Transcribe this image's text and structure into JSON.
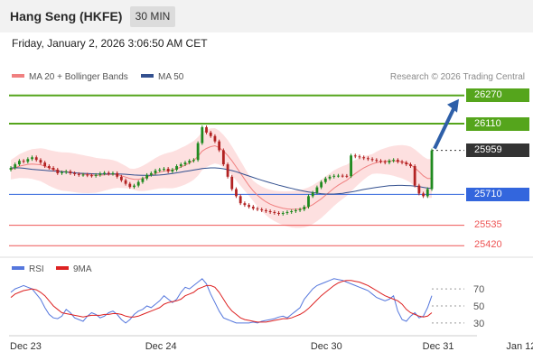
{
  "header": {
    "title": "Hang Seng (HKFE)",
    "timeframe": "30 MIN",
    "datetime": "Friday, January 2, 2026 3:06:50 AM CET"
  },
  "legend": {
    "ma20_label": "MA 20 + Bollinger Bands",
    "ma50_label": "MA 50",
    "credit": "Research © 2026 Trading Central",
    "rsi_label": "RSI",
    "rsi_ma_label": "9MA"
  },
  "colors": {
    "ma20": "#f08080",
    "ma50": "#33508f",
    "bollinger_fill": "#fde0e0",
    "up_candle": "#1f8a1f",
    "down_candle": "#b22222",
    "resistance": "#55a51c",
    "current_price": "#333333",
    "pivot": "#3366dd",
    "support": "#ee5555",
    "rsi": "#5577dd",
    "rsi_ma": "#dd2222",
    "arrow": "#2e5fa8"
  },
  "levels": [
    {
      "value": 26270,
      "label": "26270",
      "kind": "resistance"
    },
    {
      "value": 26110,
      "label": "26110",
      "kind": "resistance"
    },
    {
      "value": 25959,
      "label": "25959",
      "kind": "current"
    },
    {
      "value": 25710,
      "label": "25710",
      "kind": "pivot"
    },
    {
      "value": 25535,
      "label": "25535",
      "kind": "support"
    },
    {
      "value": 25420,
      "label": "25420",
      "kind": "support"
    }
  ],
  "chart_data": [
    {
      "type": "candlestick",
      "series": [
        {
          "name": "Hang Seng (HKFE)",
          "values": [
            25860,
            25880,
            25900,
            25895,
            25910,
            25920,
            25905,
            25890,
            25870,
            25860,
            25850,
            25830,
            25835,
            25840,
            25830,
            25825,
            25820,
            25822,
            25818,
            25815,
            25820,
            25828,
            25832,
            25826,
            25830,
            25810,
            25790,
            25770,
            25752,
            25760,
            25780,
            25800,
            25820,
            25830,
            25845,
            25850,
            25855,
            25840,
            25850,
            25870,
            25880,
            25890,
            25900,
            25905,
            26000,
            26090,
            26060,
            26040,
            26010,
            25960,
            25880,
            25810,
            25740,
            25700,
            25660,
            25650,
            25640,
            25630,
            25625,
            25620,
            25615,
            25610,
            25605,
            25600,
            25605,
            25610,
            25615,
            25620,
            25625,
            25640,
            25700,
            25720,
            25750,
            25780,
            25800,
            25810,
            25815,
            25816,
            25815,
            25813,
            25930,
            25925,
            25920,
            25915,
            25910,
            25905,
            25900,
            25895,
            25890,
            25900,
            25905,
            25895,
            25890,
            25880,
            25870,
            25760,
            25715,
            25700,
            25740,
            25959
          ]
        },
        {
          "name": "MA 20",
          "values": [
            25850,
            25860,
            25870,
            25875,
            25880,
            25882,
            25880,
            25878,
            25870,
            25860,
            25852,
            25845,
            25840,
            25838,
            25836,
            25832,
            25828,
            25825,
            25822,
            25820,
            25818,
            25819,
            25821,
            25823,
            25824,
            25822,
            25815,
            25808,
            25800,
            25795,
            25795,
            25800,
            25808,
            25818,
            25828,
            25836,
            25842,
            25845,
            25848,
            25855,
            25865,
            25875,
            25888,
            25902,
            25925,
            25955,
            25970,
            25980,
            25985,
            25975,
            25955,
            25930,
            25900,
            25865,
            25830,
            25795,
            25760,
            25730,
            25705,
            25685,
            25668,
            25655,
            25645,
            25638,
            25632,
            25628,
            25626,
            25626,
            25628,
            25632,
            25640,
            25652,
            25668,
            25685,
            25705,
            25725,
            25745,
            25762,
            25777,
            25790,
            25810,
            25828,
            25845,
            25860,
            25872,
            25882,
            25890,
            25895,
            25898,
            25900,
            25900,
            25898,
            25895,
            25888,
            25878,
            25860,
            25838,
            25815,
            25800,
            25800
          ]
        },
        {
          "name": "MA 50",
          "values": [
            25860,
            25860,
            25860,
            25858,
            25855,
            25852,
            25850,
            25848,
            25846,
            25844,
            25842,
            25840,
            25838,
            25836,
            25834,
            25832,
            25830,
            25829,
            25828,
            25827,
            25826,
            25826,
            25826,
            25826,
            25826,
            25826,
            25825,
            25824,
            25822,
            25820,
            25819,
            25818,
            25818,
            25818,
            25819,
            25820,
            25822,
            25825,
            25828,
            25832,
            25836,
            25840,
            25844,
            25848,
            25852,
            25856,
            25858,
            25860,
            25860,
            25858,
            25855,
            25850,
            25845,
            25838,
            25830,
            25822,
            25814,
            25806,
            25798,
            25790,
            25783,
            25776,
            25769,
            25762,
            25756,
            25750,
            25744,
            25738,
            25733,
            25728,
            25724,
            25720,
            25717,
            25714,
            25712,
            25712,
            25712,
            25714,
            25716,
            25720,
            25724,
            25728,
            25733,
            25738,
            25742,
            25746,
            25750,
            25753,
            25756,
            25759,
            25760,
            25761,
            25761,
            25760,
            25759,
            25757,
            25754,
            25750,
            25746,
            25743
          ]
        }
      ],
      "ylim": [
        25370,
        26340
      ],
      "y_ticks": [
        25420,
        25535,
        25710,
        25959,
        26110,
        26270
      ],
      "x_tick_labels": [
        "Dec 23",
        "Dec 24",
        "Dec 30",
        "Dec 31",
        "Jan 12"
      ],
      "legend": "top-left",
      "grid": false
    },
    {
      "type": "line",
      "series": [
        {
          "name": "RSI",
          "values": [
            66,
            70,
            72,
            74,
            72,
            70,
            64,
            58,
            48,
            40,
            36,
            35,
            38,
            46,
            42,
            36,
            34,
            32,
            38,
            42,
            40,
            36,
            38,
            42,
            44,
            40,
            34,
            30,
            34,
            40,
            44,
            46,
            50,
            48,
            52,
            56,
            62,
            58,
            54,
            58,
            66,
            72,
            70,
            74,
            78,
            82,
            76,
            64,
            54,
            44,
            36,
            34,
            32,
            30,
            30,
            30,
            30,
            31,
            30,
            32,
            33,
            34,
            35,
            37,
            38,
            36,
            40,
            44,
            48,
            58,
            64,
            70,
            74,
            76,
            78,
            80,
            82,
            81,
            80,
            78,
            76,
            74,
            72,
            70,
            68,
            64,
            60,
            58,
            56,
            58,
            62,
            44,
            34,
            32,
            38,
            42,
            36,
            38,
            48,
            62
          ]
        },
        {
          "name": "9MA",
          "values": [
            60,
            64,
            66,
            68,
            69,
            70,
            69,
            66,
            62,
            56,
            50,
            46,
            42,
            41,
            40,
            39,
            38,
            37,
            38,
            39,
            39,
            39,
            40,
            40,
            41,
            41,
            40,
            38,
            37,
            37,
            38,
            40,
            42,
            44,
            46,
            48,
            52,
            54,
            55,
            56,
            58,
            62,
            64,
            66,
            70,
            72,
            74,
            74,
            72,
            66,
            58,
            50,
            44,
            40,
            36,
            34,
            33,
            32,
            31,
            31,
            31,
            32,
            33,
            34,
            35,
            35,
            36,
            38,
            40,
            43,
            47,
            52,
            57,
            62,
            66,
            70,
            74,
            77,
            79,
            80,
            80,
            79,
            78,
            76,
            74,
            71,
            68,
            65,
            62,
            60,
            58,
            56,
            52,
            46,
            42,
            40,
            38,
            37,
            38,
            42
          ]
        }
      ],
      "ylim": [
        15,
        85
      ],
      "y_ticks": [
        30,
        50,
        70
      ],
      "legend": "top-left"
    }
  ]
}
